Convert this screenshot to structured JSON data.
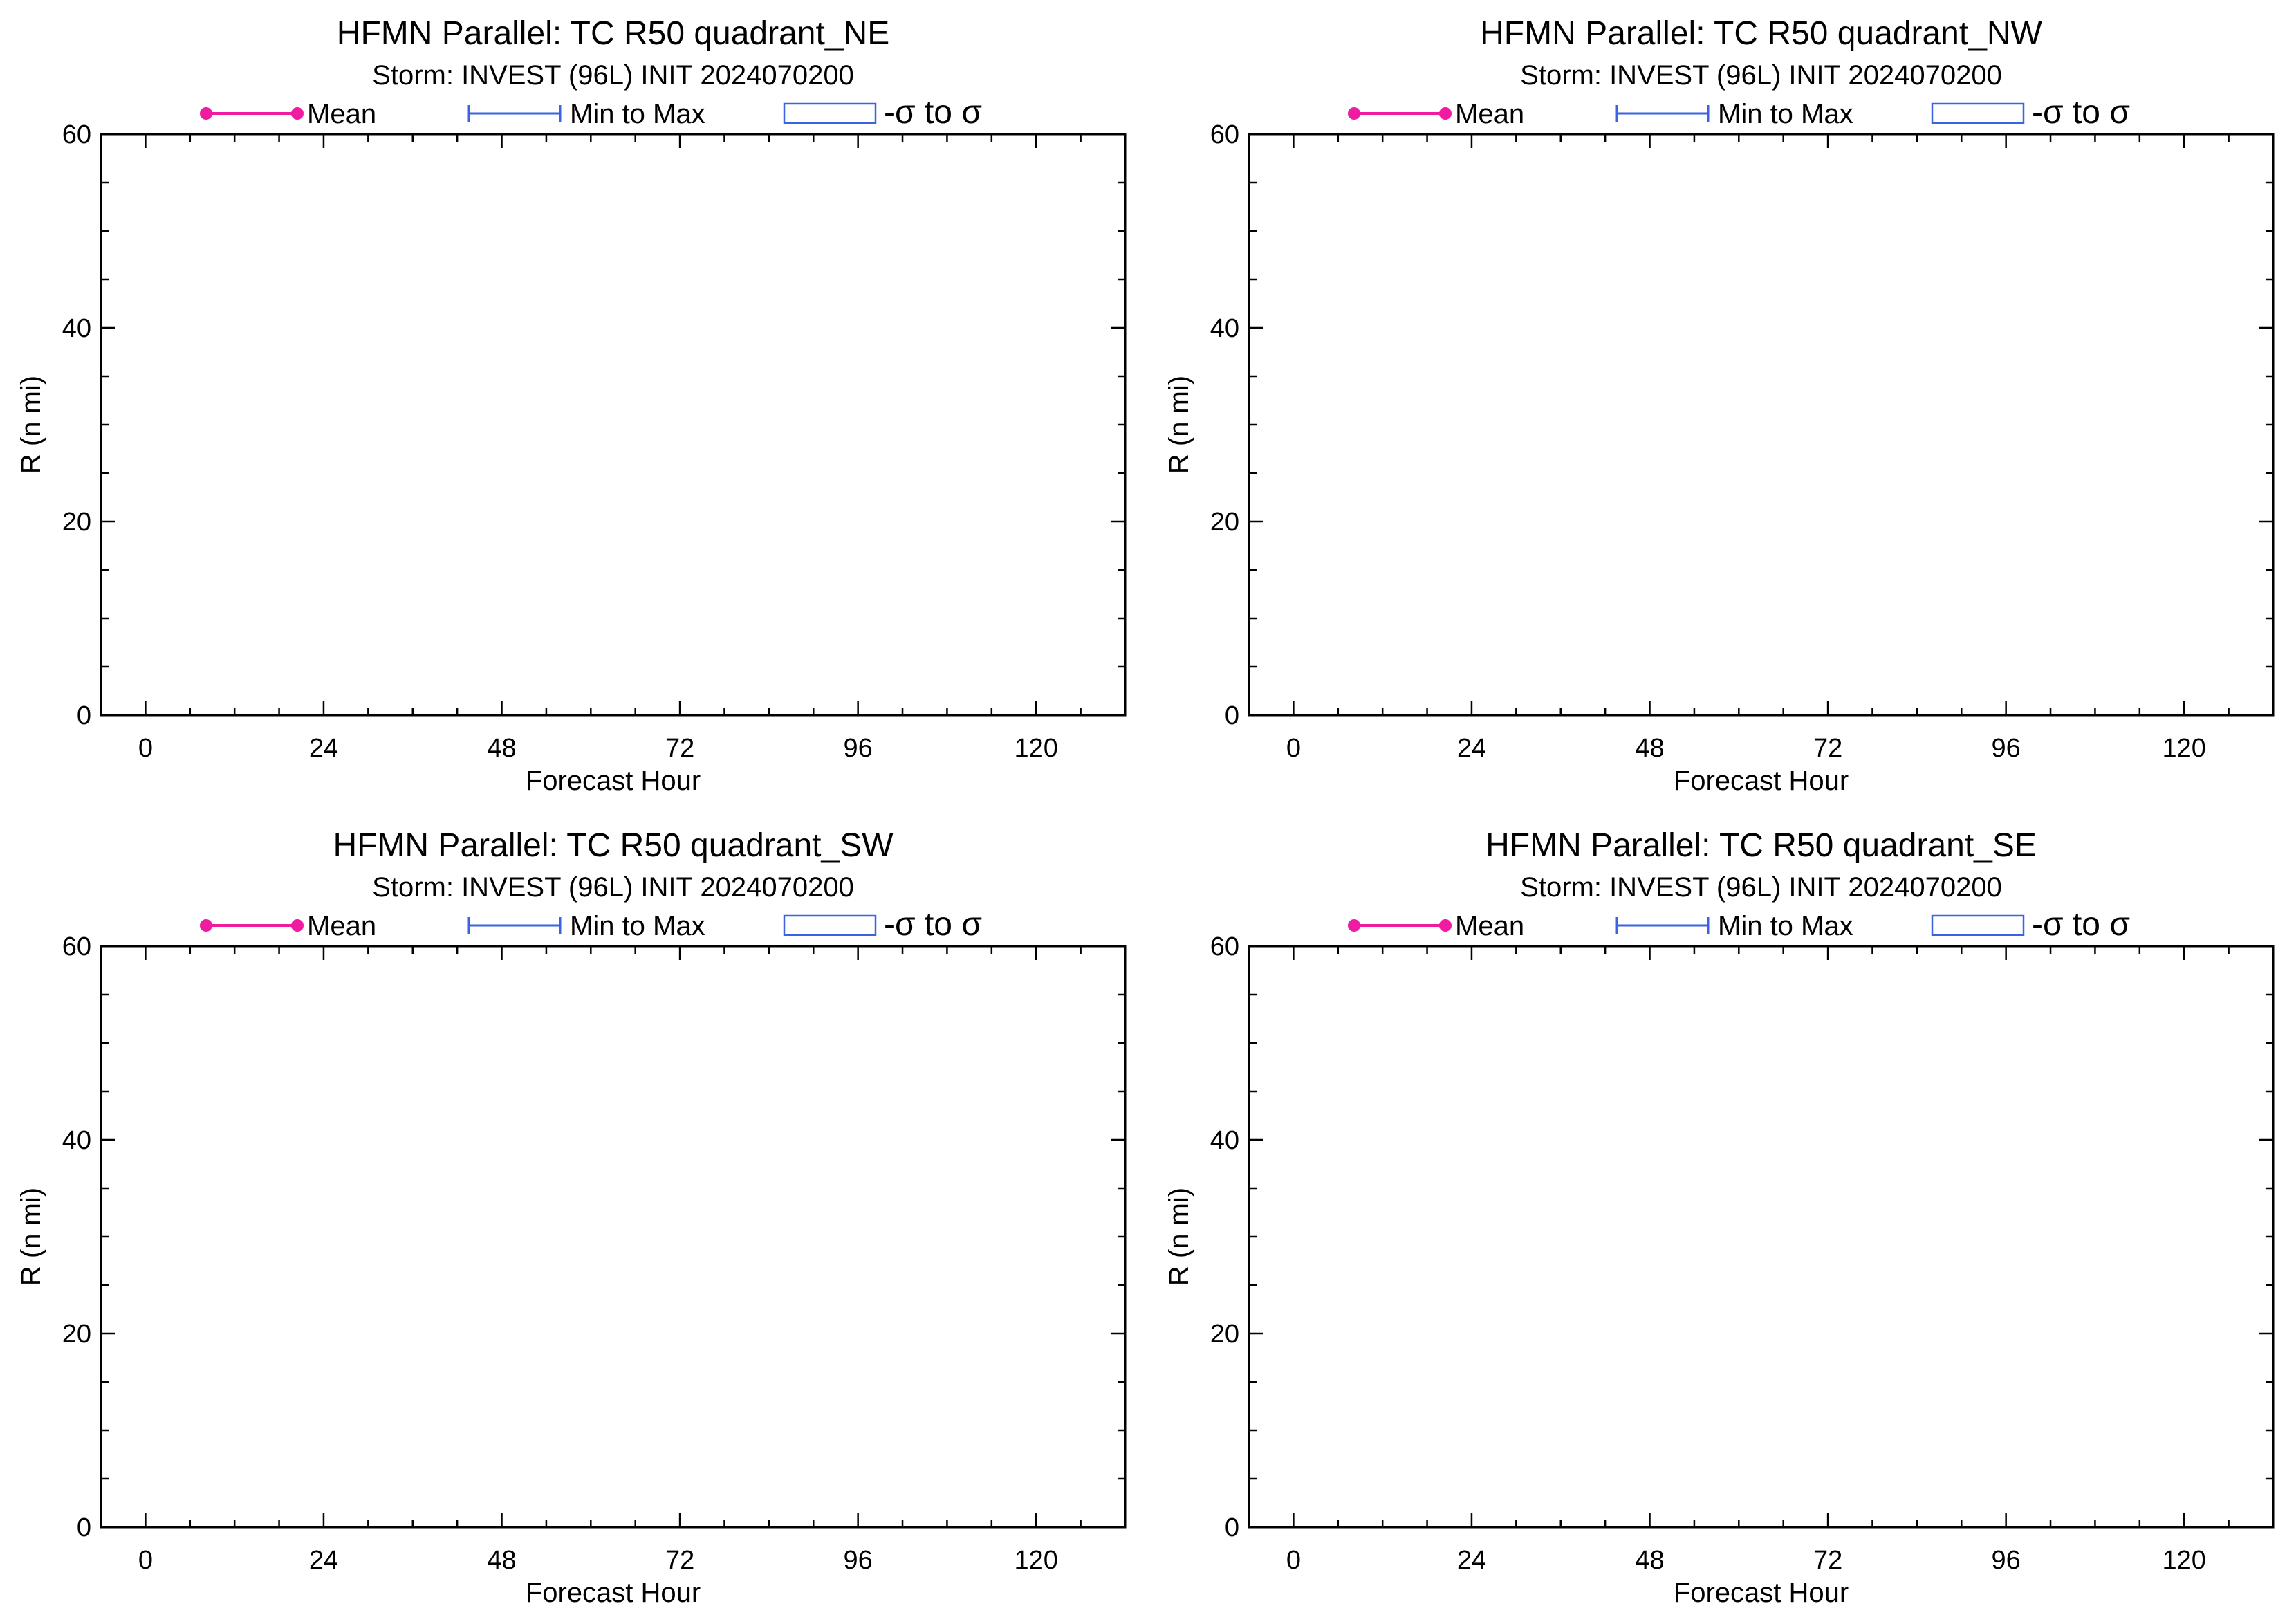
{
  "colors": {
    "mean": "#f01ba0",
    "minmax": "#3a63e0",
    "sigma_box": "#3a63e0",
    "axes": "#000000",
    "background": "#ffffff"
  },
  "legend": {
    "mean_label": "Mean",
    "minmax_label": "Min to Max",
    "sigma_label": "-σ to σ"
  },
  "chart_data": [
    {
      "type": "line",
      "title": "HFMN Parallel: TC  R50 quadrant_NE",
      "subtitle": "Storm: INVEST (96L) INIT 2024070200",
      "xlabel": "Forecast Hour",
      "ylabel": "R (n mi)",
      "xlim": [
        -6,
        132
      ],
      "ylim": [
        0,
        60
      ],
      "x_ticks": [
        0,
        24,
        48,
        72,
        96,
        120
      ],
      "y_ticks": [
        0,
        20,
        40,
        60
      ],
      "x_minor_step": 6,
      "y_minor_step": 5,
      "grid": false,
      "legend": "top",
      "series": []
    },
    {
      "type": "line",
      "title": "HFMN Parallel: TC  R50 quadrant_NW",
      "subtitle": "Storm: INVEST (96L) INIT 2024070200",
      "xlabel": "Forecast Hour",
      "ylabel": "R (n mi)",
      "xlim": [
        -6,
        132
      ],
      "ylim": [
        0,
        60
      ],
      "x_ticks": [
        0,
        24,
        48,
        72,
        96,
        120
      ],
      "y_ticks": [
        0,
        20,
        40,
        60
      ],
      "x_minor_step": 6,
      "y_minor_step": 5,
      "grid": false,
      "legend": "top",
      "series": []
    },
    {
      "type": "line",
      "title": "HFMN Parallel: TC  R50 quadrant_SW",
      "subtitle": "Storm: INVEST (96L) INIT 2024070200",
      "xlabel": "Forecast Hour",
      "ylabel": "R (n mi)",
      "xlim": [
        -6,
        132
      ],
      "ylim": [
        0,
        60
      ],
      "x_ticks": [
        0,
        24,
        48,
        72,
        96,
        120
      ],
      "y_ticks": [
        0,
        20,
        40,
        60
      ],
      "x_minor_step": 6,
      "y_minor_step": 5,
      "grid": false,
      "legend": "top",
      "series": []
    },
    {
      "type": "line",
      "title": "HFMN Parallel: TC  R50 quadrant_SE",
      "subtitle": "Storm: INVEST (96L) INIT 2024070200",
      "xlabel": "Forecast Hour",
      "ylabel": "R (n mi)",
      "xlim": [
        -6,
        132
      ],
      "ylim": [
        0,
        60
      ],
      "x_ticks": [
        0,
        24,
        48,
        72,
        96,
        120
      ],
      "y_ticks": [
        0,
        20,
        40,
        60
      ],
      "x_minor_step": 6,
      "y_minor_step": 5,
      "grid": false,
      "legend": "top",
      "series": []
    }
  ]
}
